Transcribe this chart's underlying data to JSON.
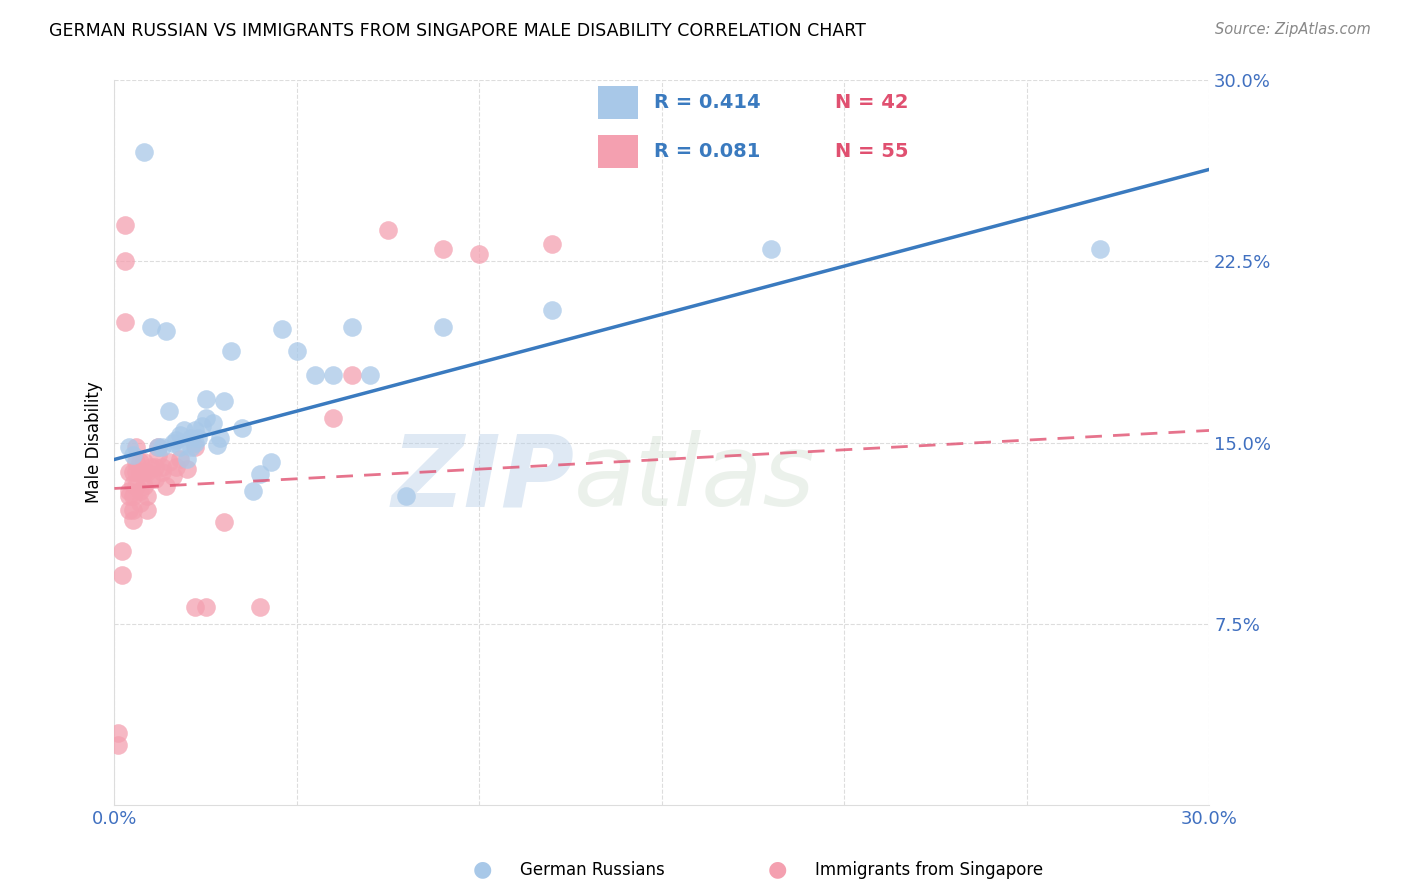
{
  "title": "GERMAN RUSSIAN VS IMMIGRANTS FROM SINGAPORE MALE DISABILITY CORRELATION CHART",
  "source": "Source: ZipAtlas.com",
  "ylabel": "Male Disability",
  "watermark": "ZIPatlas",
  "xlim": [
    0.0,
    0.3
  ],
  "ylim": [
    0.0,
    0.3
  ],
  "xticks": [
    0.0,
    0.05,
    0.1,
    0.15,
    0.2,
    0.25,
    0.3
  ],
  "xtick_labels": [
    "0.0%",
    "",
    "",
    "",
    "",
    "",
    "30.0%"
  ],
  "yticks": [
    0.075,
    0.15,
    0.225,
    0.3
  ],
  "ytick_labels": [
    "7.5%",
    "15.0%",
    "22.5%",
    "30.0%"
  ],
  "legend1_r": "R = 0.414",
  "legend1_n": "N = 42",
  "legend2_r": "R = 0.081",
  "legend2_n": "N = 55",
  "legend_label1": "German Russians",
  "legend_label2": "Immigrants from Singapore",
  "blue_color": "#a8c8e8",
  "blue_line_color": "#3a7abf",
  "pink_color": "#f4a0b0",
  "pink_line_color": "#e05070",
  "legend_n_color": "#e05070",
  "legend_r_color": "#3a7abf",
  "blue_scatter_x": [
    0.004,
    0.005,
    0.008,
    0.01,
    0.012,
    0.013,
    0.014,
    0.015,
    0.016,
    0.017,
    0.018,
    0.018,
    0.019,
    0.02,
    0.021,
    0.021,
    0.022,
    0.022,
    0.023,
    0.024,
    0.025,
    0.025,
    0.027,
    0.028,
    0.029,
    0.03,
    0.032,
    0.035,
    0.038,
    0.04,
    0.043,
    0.046,
    0.05,
    0.055,
    0.06,
    0.065,
    0.07,
    0.08,
    0.09,
    0.12,
    0.18,
    0.27
  ],
  "blue_scatter_y": [
    0.148,
    0.145,
    0.27,
    0.198,
    0.148,
    0.148,
    0.196,
    0.163,
    0.15,
    0.151,
    0.148,
    0.153,
    0.155,
    0.143,
    0.148,
    0.152,
    0.15,
    0.155,
    0.152,
    0.157,
    0.16,
    0.168,
    0.158,
    0.149,
    0.152,
    0.167,
    0.188,
    0.156,
    0.13,
    0.137,
    0.142,
    0.197,
    0.188,
    0.178,
    0.178,
    0.198,
    0.178,
    0.128,
    0.198,
    0.205,
    0.23,
    0.23
  ],
  "pink_scatter_x": [
    0.001,
    0.001,
    0.002,
    0.002,
    0.003,
    0.003,
    0.003,
    0.004,
    0.004,
    0.004,
    0.004,
    0.005,
    0.005,
    0.005,
    0.005,
    0.005,
    0.006,
    0.006,
    0.006,
    0.006,
    0.007,
    0.007,
    0.007,
    0.007,
    0.008,
    0.008,
    0.008,
    0.009,
    0.009,
    0.009,
    0.01,
    0.01,
    0.011,
    0.011,
    0.012,
    0.012,
    0.013,
    0.013,
    0.014,
    0.015,
    0.016,
    0.017,
    0.018,
    0.02,
    0.022,
    0.025,
    0.03,
    0.04,
    0.06,
    0.065,
    0.075,
    0.09,
    0.1,
    0.12,
    0.022
  ],
  "pink_scatter_y": [
    0.03,
    0.025,
    0.105,
    0.095,
    0.24,
    0.225,
    0.2,
    0.138,
    0.13,
    0.128,
    0.122,
    0.118,
    0.122,
    0.128,
    0.133,
    0.138,
    0.132,
    0.138,
    0.142,
    0.148,
    0.138,
    0.142,
    0.13,
    0.125,
    0.132,
    0.138,
    0.142,
    0.122,
    0.128,
    0.138,
    0.135,
    0.14,
    0.14,
    0.135,
    0.145,
    0.148,
    0.138,
    0.14,
    0.132,
    0.142,
    0.136,
    0.14,
    0.143,
    0.139,
    0.082,
    0.082,
    0.117,
    0.082,
    0.16,
    0.178,
    0.238,
    0.23,
    0.228,
    0.232,
    0.148
  ],
  "blue_line_y_start": 0.143,
  "blue_line_y_end": 0.263,
  "pink_line_y_start": 0.131,
  "pink_line_y_end": 0.155
}
